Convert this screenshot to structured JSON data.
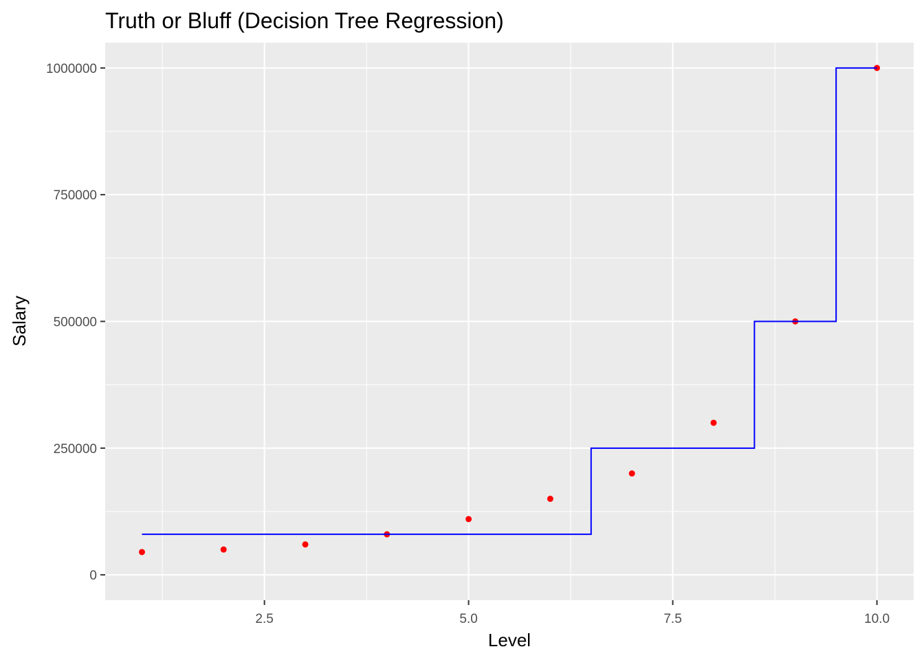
{
  "chart_data": {
    "type": "scatter",
    "title": "Truth or Bluff (Decision Tree Regression)",
    "xlabel": "Level",
    "ylabel": "Salary",
    "xlim": [
      0.55,
      10.45
    ],
    "ylim": [
      -50000,
      1050000
    ],
    "x_ticks": [
      2.5,
      5.0,
      7.5,
      10.0
    ],
    "x_tick_labels": [
      "2.5",
      "5.0",
      "7.5",
      "10.0"
    ],
    "x_minor_ticks": [
      1.25,
      3.75,
      6.25,
      8.75
    ],
    "y_ticks": [
      0,
      250000,
      500000,
      750000,
      1000000
    ],
    "y_tick_labels": [
      "0",
      "250000",
      "500000",
      "750000",
      "1000000"
    ],
    "y_minor_ticks": [
      125000,
      375000,
      625000,
      875000
    ],
    "grid": true,
    "background": "#EBEBEB",
    "grid_color": "#FFFFFF",
    "series": [
      {
        "kind": "points",
        "color": "#FF0000",
        "x": [
          1,
          2,
          3,
          4,
          5,
          6,
          7,
          8,
          9,
          10
        ],
        "y": [
          45000,
          50000,
          60000,
          80000,
          110000,
          150000,
          200000,
          300000,
          500000,
          1000000
        ]
      },
      {
        "kind": "step-line",
        "color": "#0000FF",
        "x": [
          1.0,
          6.5,
          6.5,
          8.5,
          8.5,
          9.5,
          9.5,
          10.0
        ],
        "y": [
          80000,
          80000,
          250000,
          250000,
          500000,
          500000,
          1000000,
          1000000
        ]
      }
    ]
  }
}
